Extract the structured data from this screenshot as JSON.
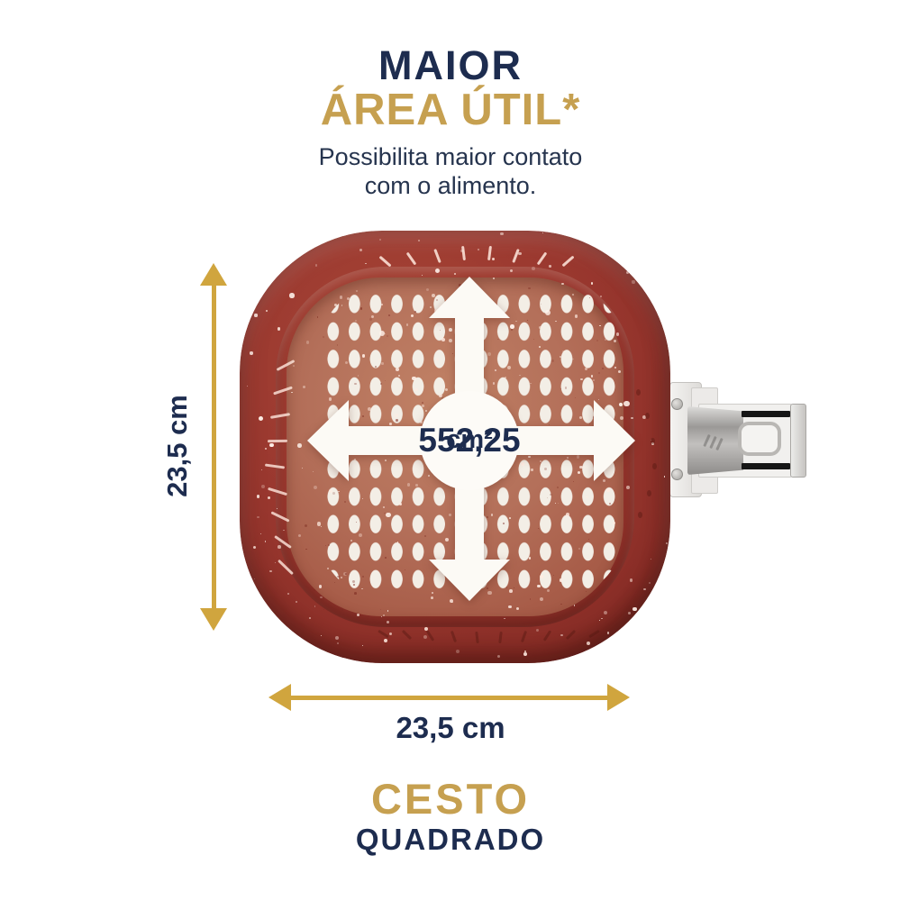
{
  "header": {
    "title_line1": "MAIOR",
    "title_line2": "ÁREA ÚTIL*",
    "subtitle_line1": "Possibilita maior contato",
    "subtitle_line2": "com o alimento."
  },
  "basket": {
    "area_value": "552,25",
    "area_unit": "cm²"
  },
  "dimensions": {
    "height_label": "23,5 cm",
    "width_label": "23,5 cm"
  },
  "footer": {
    "line1": "CESTO",
    "line2": "QUADRADO"
  },
  "icons": {
    "area_expand": "four-way-expand-arrows",
    "height": "double-headed-vertical-arrow",
    "width": "double-headed-horizontal-arrow"
  },
  "colors": {
    "navy": "#1d2c4f",
    "gold": "#c6a050",
    "arrow_gold": "#d0a53e",
    "rim_red": "#9a382f",
    "floor_red": "#b06a55",
    "hole_white": "#f3eee6"
  }
}
